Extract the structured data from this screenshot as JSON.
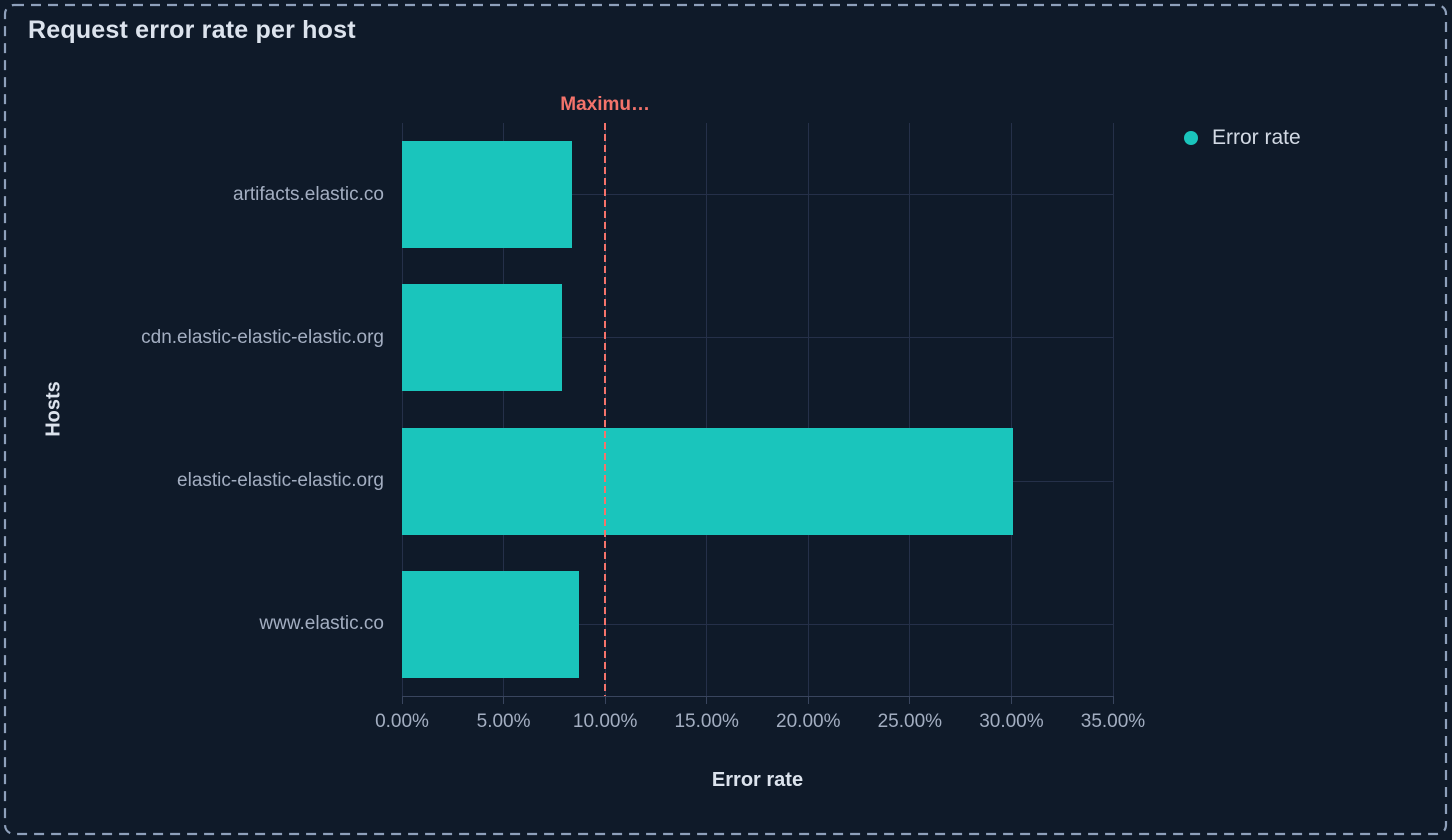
{
  "panel": {
    "title": "Request error rate per host"
  },
  "legend": {
    "position": "top-right",
    "items": [
      {
        "label": "Error rate",
        "color": "#1ac5bc"
      }
    ]
  },
  "chart_data": {
    "type": "bar",
    "orientation": "horizontal",
    "title": "Request error rate per host",
    "xlabel": "Error rate",
    "ylabel": "Hosts",
    "categories": [
      "artifacts.elastic.co",
      "cdn.elastic-elastic-elastic.org",
      "elastic-elastic-elastic.org",
      "www.elastic.co"
    ],
    "series": [
      {
        "name": "Error rate",
        "color": "#1ac5bc",
        "values": [
          8.35,
          7.9,
          30.1,
          8.7
        ]
      }
    ],
    "value_unit": "%",
    "x_tick_values": [
      0,
      5,
      10,
      15,
      20,
      25,
      30,
      35
    ],
    "x_tick_labels": [
      "0.00%",
      "5.00%",
      "10.00%",
      "15.00%",
      "20.00%",
      "25.00%",
      "30.00%",
      "35.00%"
    ],
    "xlim": [
      0,
      35
    ],
    "grid": true,
    "legend_position": "top-right",
    "annotation": {
      "label": "Maximu…",
      "value": 10,
      "color": "#f4736b",
      "style": "vertical-dashed-line"
    }
  },
  "colors": {
    "background": "#0f1a29",
    "panel_border": "#8ea0bb",
    "bar": "#1ac5bc",
    "annotation": "#f4736b",
    "gridline": "#253049",
    "axis_line": "#39455e",
    "tick_label": "#a3aec1",
    "axis_title": "#dce3ed",
    "title": "#dce3ed",
    "legend_text": "#d2d9e4"
  }
}
